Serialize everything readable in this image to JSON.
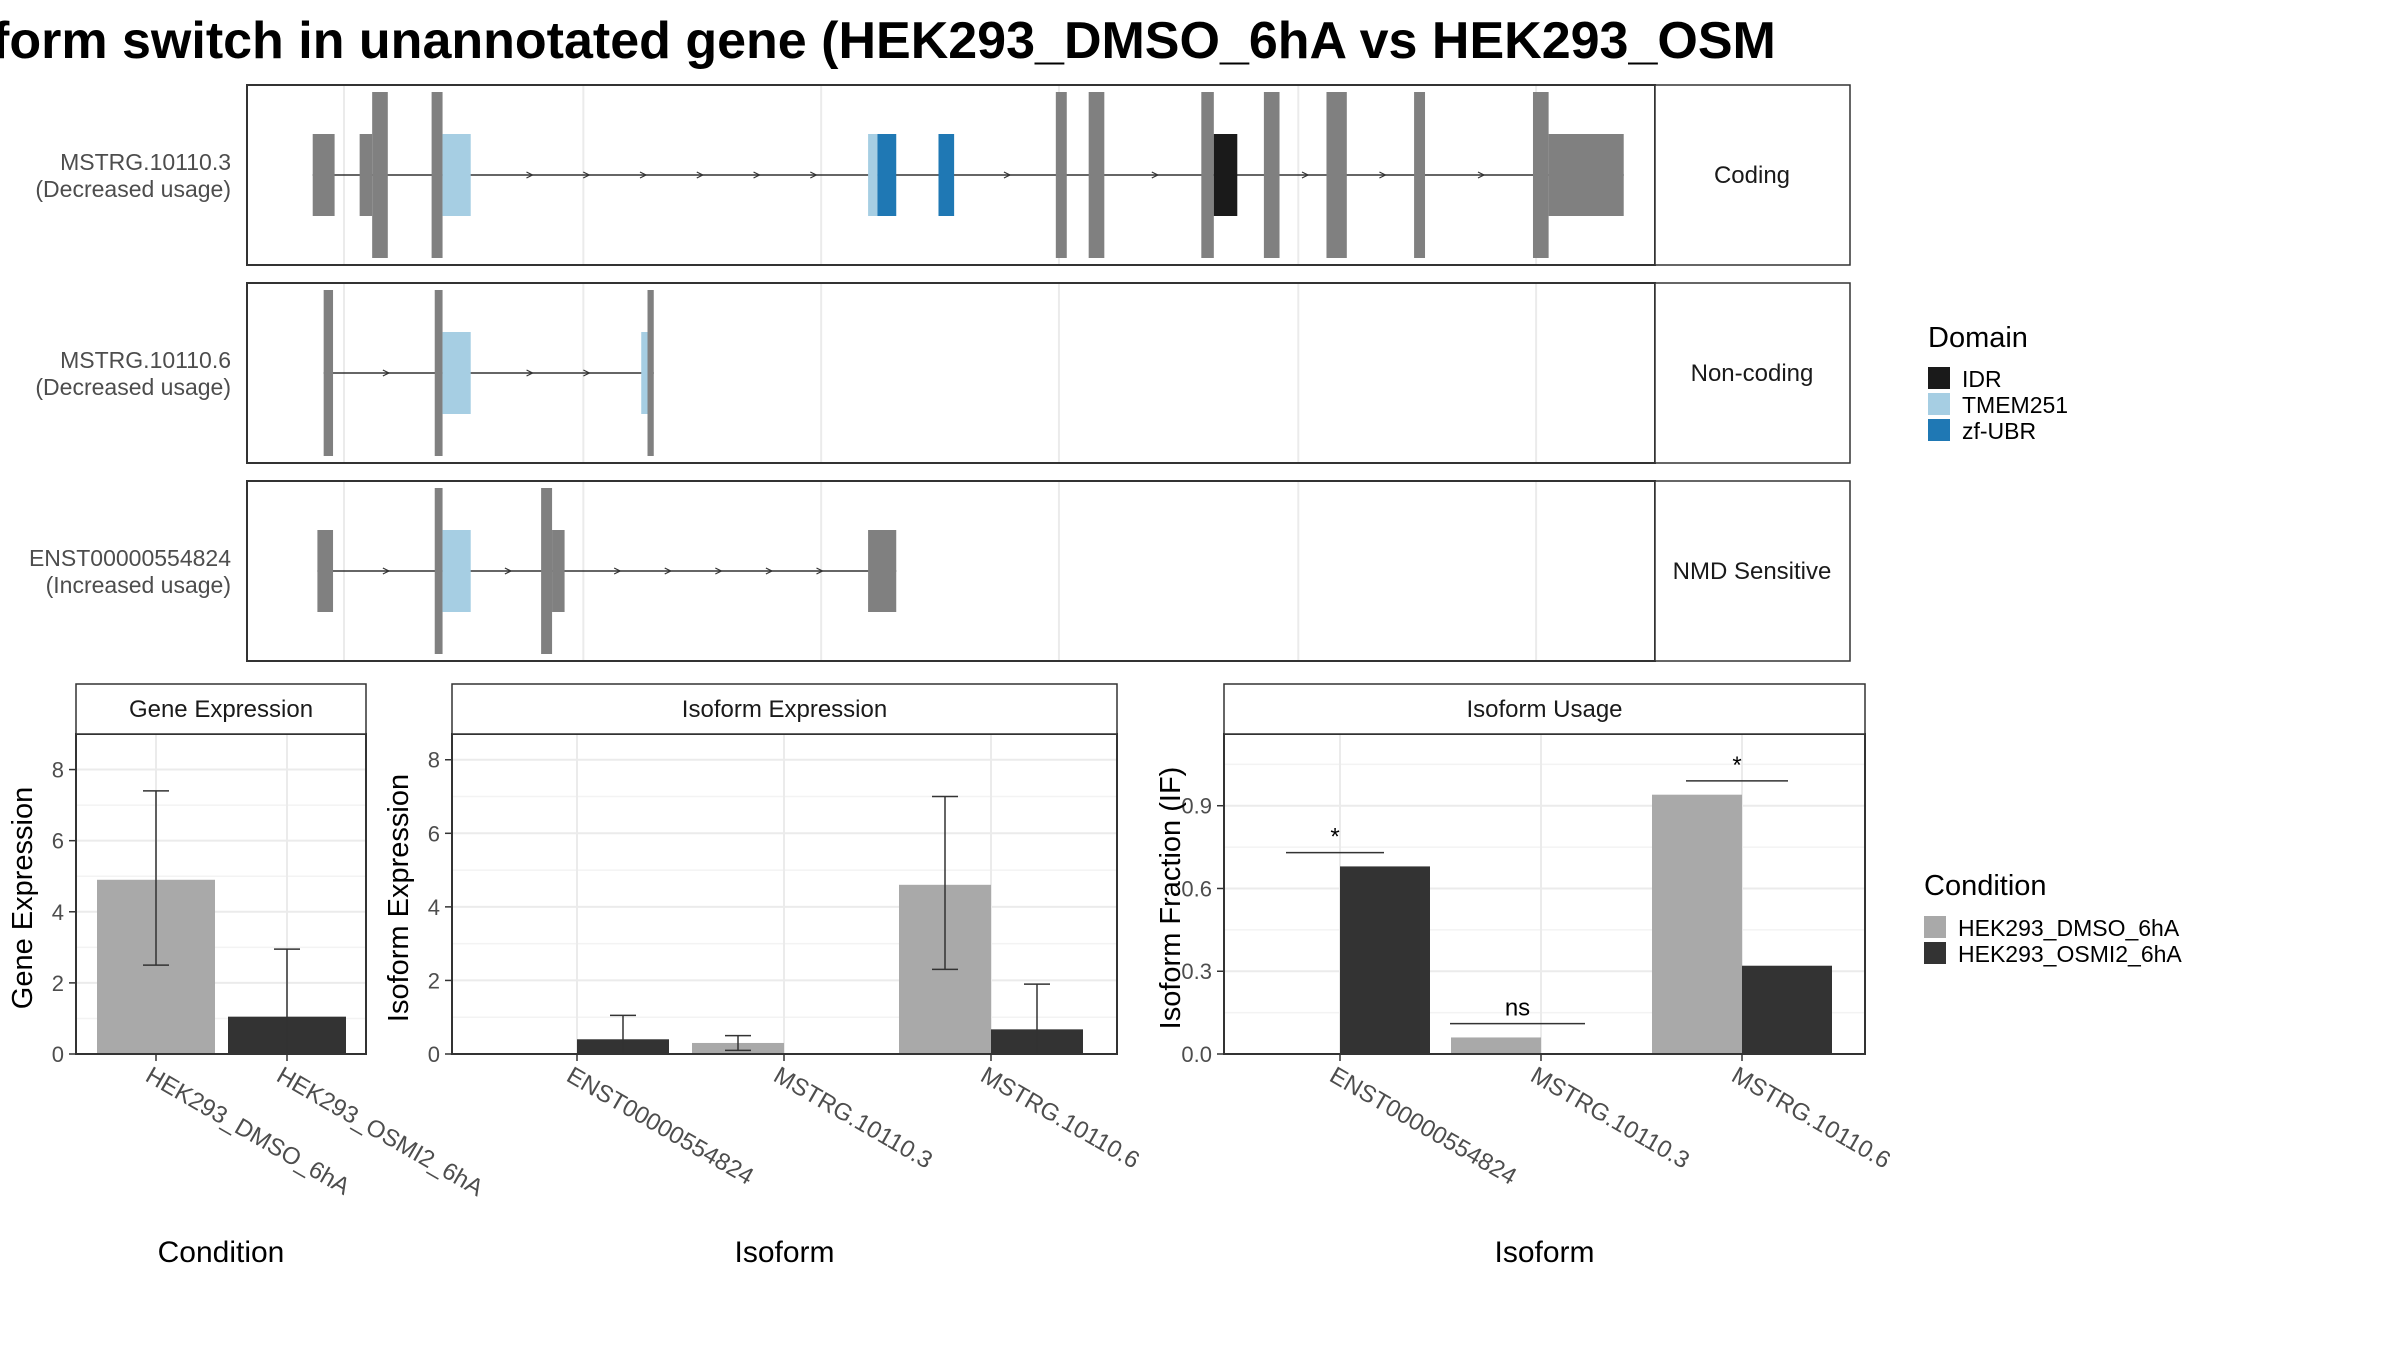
{
  "title": "form switch in unannotated gene (HEK293_DMSO_6hA vs HEK293_OSM",
  "colors": {
    "dmso": "#A9A9A9",
    "osmi": "#333333",
    "exon": "#808080",
    "idr": "#1A1A1A",
    "tmem": "#A6CEE3",
    "zfubr": "#1F78B4",
    "grid": "#EBEBEB",
    "strip": "#FFFFFF"
  },
  "legend_domain": {
    "title": "Domain",
    "items": [
      "IDR",
      "TMEM251",
      "zf-UBR"
    ]
  },
  "legend_condition": {
    "title": "Condition",
    "items": [
      "HEK293_DMSO_6hA",
      "HEK293_OSMI2_6hA"
    ]
  },
  "tracks": [
    {
      "name": "MSTRG.10110.3",
      "usage": "(Decreased usage)",
      "category": "Coding",
      "exons": [
        [
          42,
          56,
          "n"
        ],
        [
          72,
          80,
          "n"
        ],
        [
          80,
          90,
          "c"
        ],
        [
          118,
          125,
          "c"
        ],
        [
          125,
          143,
          "t"
        ],
        [
          397,
          403,
          "t"
        ],
        [
          403,
          415,
          "z"
        ],
        [
          442,
          452,
          "z"
        ],
        [
          517,
          524,
          "c"
        ],
        [
          538,
          548,
          "c"
        ],
        [
          610,
          618,
          "c"
        ],
        [
          618,
          633,
          "i"
        ],
        [
          650,
          660,
          "c"
        ],
        [
          690,
          703,
          "c"
        ],
        [
          746,
          753,
          "c"
        ],
        [
          822,
          832,
          "c"
        ],
        [
          832,
          880,
          "n"
        ]
      ],
      "domains": [
        {
          "d": "TMEM251",
          "x1": 125,
          "x2": 143
        },
        {
          "d": "zf-UBR",
          "x1": 397,
          "x2": 415
        },
        {
          "d": "zf-UBR",
          "x1": 442,
          "x2": 452
        },
        {
          "d": "IDR",
          "x1": 610,
          "x2": 633
        }
      ]
    },
    {
      "name": "MSTRG.10110.6",
      "usage": "(Decreased usage)",
      "category": "Non-coding",
      "exons": [
        [
          49,
          55,
          "c"
        ],
        [
          120,
          125,
          "c"
        ],
        [
          125,
          143,
          "t"
        ],
        [
          252,
          256,
          "t"
        ],
        [
          256,
          260,
          "c"
        ]
      ],
      "domains": [
        {
          "d": "TMEM251",
          "x1": 125,
          "x2": 143
        },
        {
          "d": "TMEM251",
          "x1": 252,
          "x2": 256
        }
      ]
    },
    {
      "name": "ENST00000554824",
      "usage": "(Increased usage)",
      "category": "NMD Sensitive",
      "exons": [
        [
          45,
          55,
          "n"
        ],
        [
          120,
          125,
          "c"
        ],
        [
          125,
          143,
          "t"
        ],
        [
          188,
          195,
          "c"
        ],
        [
          195,
          203,
          "n"
        ],
        [
          397,
          415,
          "n"
        ]
      ],
      "domains": [
        {
          "d": "TMEM251",
          "x1": 125,
          "x2": 143
        }
      ]
    }
  ],
  "panels": [
    {
      "strip": "Gene Expression",
      "ylabel": "Gene Expression",
      "xlabel": "Condition",
      "ymax": 9,
      "yticks": [
        0,
        2,
        4,
        6,
        8
      ],
      "categories": [
        "HEK293_DMSO_6hA",
        "HEK293_OSMI2_6hA"
      ]
    },
    {
      "strip": "Isoform Expression",
      "ylabel": "Isoform Expression",
      "xlabel": "Isoform",
      "ymax": 8.7,
      "yticks": [
        0,
        2,
        4,
        6,
        8
      ],
      "categories": [
        "ENST00000554824",
        "MSTRG.10110.3",
        "MSTRG.10110.6"
      ]
    },
    {
      "strip": "Isoform Usage",
      "ylabel": "Isoform Fraction (IF)",
      "xlabel": "Isoform",
      "ymax": 1.16,
      "yticks": [
        0.0,
        0.3,
        0.6,
        0.9
      ],
      "ytick_labels": [
        "0.0",
        "0.3",
        "0.6",
        "0.9"
      ],
      "categories": [
        "ENST00000554824",
        "MSTRG.10110.3",
        "MSTRG.10110.6"
      ],
      "annotations": [
        "*",
        "ns",
        "*"
      ]
    }
  ],
  "chart_data": [
    {
      "type": "bar",
      "title": "Gene Expression",
      "xlabel": "Condition",
      "ylabel": "Gene Expression",
      "ylim": [
        0,
        9
      ],
      "categories": [
        "HEK293_DMSO_6hA",
        "HEK293_OSMI2_6hA"
      ],
      "series": [
        {
          "name": "HEK293_DMSO_6hA",
          "values": [
            4.9,
            null
          ],
          "err_low": [
            2.5,
            null
          ],
          "err_high": [
            7.4,
            null
          ]
        },
        {
          "name": "HEK293_OSMI2_6hA",
          "values": [
            null,
            1.05
          ],
          "err_low": [
            null,
            0.0
          ],
          "err_high": [
            null,
            2.95
          ]
        }
      ]
    },
    {
      "type": "bar",
      "title": "Isoform Expression",
      "xlabel": "Isoform",
      "ylabel": "Isoform Expression",
      "ylim": [
        0,
        8.7
      ],
      "categories": [
        "ENST00000554824",
        "MSTRG.10110.3",
        "MSTRG.10110.6"
      ],
      "series": [
        {
          "name": "HEK293_DMSO_6hA",
          "values": [
            0.0,
            0.3,
            4.6
          ],
          "err_low": [
            0.0,
            0.1,
            2.3
          ],
          "err_high": [
            0.0,
            0.5,
            7.0
          ]
        },
        {
          "name": "HEK293_OSMI2_6hA",
          "values": [
            0.4,
            0.0,
            0.67
          ],
          "err_low": [
            0.0,
            0.0,
            0.0
          ],
          "err_high": [
            1.05,
            0.0,
            1.9
          ]
        }
      ]
    },
    {
      "type": "bar",
      "title": "Isoform Usage",
      "xlabel": "Isoform",
      "ylabel": "Isoform Fraction (IF)",
      "ylim": [
        0,
        1.16
      ],
      "categories": [
        "ENST00000554824",
        "MSTRG.10110.3",
        "MSTRG.10110.6"
      ],
      "series": [
        {
          "name": "HEK293_DMSO_6hA",
          "values": [
            0.0,
            0.06,
            0.94
          ]
        },
        {
          "name": "HEK293_OSMI2_6hA",
          "values": [
            0.68,
            0.0,
            0.32
          ]
        }
      ],
      "significance": [
        "*",
        "ns",
        "*"
      ]
    },
    {
      "type": "table",
      "title": "",
      "rows": [
        "MSTRG.10110.3",
        "MSTRG.10110.6",
        "ENST00000554824"
      ],
      "values": [
        "Coding",
        "Non-coding",
        "NMD Sensitive"
      ]
    }
  ]
}
